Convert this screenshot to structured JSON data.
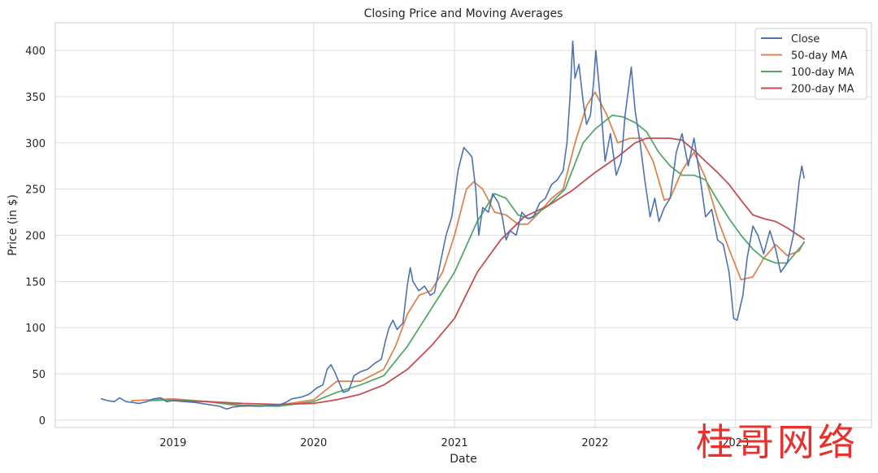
{
  "watermark": "桂哥网络",
  "chart_data": {
    "type": "line",
    "title": "Closing Price and Moving Averages",
    "xlabel": "Date",
    "ylabel": "Price (in $)",
    "xlim": [
      "2018-03-01",
      "2023-12-20"
    ],
    "ylim": [
      -8,
      430
    ],
    "x_ticks": [
      "2019",
      "2020",
      "2021",
      "2022",
      "2023"
    ],
    "x_tick_dates": [
      "2019-01-01",
      "2020-01-01",
      "2021-01-01",
      "2022-01-01",
      "2023-01-01"
    ],
    "y_ticks": [
      0,
      50,
      100,
      150,
      200,
      250,
      300,
      350,
      400
    ],
    "grid": true,
    "legend_position": "top-right",
    "series": [
      {
        "name": "Close",
        "color": "#4c72b0",
        "points": [
          [
            "2018-06-29",
            23
          ],
          [
            "2018-07-15",
            21
          ],
          [
            "2018-08-01",
            20
          ],
          [
            "2018-08-15",
            24
          ],
          [
            "2018-09-01",
            20
          ],
          [
            "2018-09-20",
            19
          ],
          [
            "2018-10-05",
            18
          ],
          [
            "2018-10-25",
            20
          ],
          [
            "2018-11-10",
            23
          ],
          [
            "2018-12-01",
            24
          ],
          [
            "2018-12-15",
            20
          ],
          [
            "2019-01-01",
            21
          ],
          [
            "2019-02-01",
            20
          ],
          [
            "2019-03-01",
            19
          ],
          [
            "2019-04-01",
            17
          ],
          [
            "2019-05-01",
            15
          ],
          [
            "2019-05-20",
            12
          ],
          [
            "2019-06-05",
            14
          ],
          [
            "2019-06-25",
            15
          ],
          [
            "2019-07-15",
            16
          ],
          [
            "2019-08-01",
            15
          ],
          [
            "2019-08-20",
            15
          ],
          [
            "2019-09-10",
            16
          ],
          [
            "2019-10-01",
            16
          ],
          [
            "2019-10-20",
            19
          ],
          [
            "2019-11-05",
            23
          ],
          [
            "2019-12-01",
            25
          ],
          [
            "2019-12-20",
            28
          ],
          [
            "2020-01-10",
            35
          ],
          [
            "2020-01-25",
            38
          ],
          [
            "2020-02-05",
            55
          ],
          [
            "2020-02-15",
            60
          ],
          [
            "2020-02-25",
            52
          ],
          [
            "2020-03-10",
            38
          ],
          [
            "2020-03-18",
            30
          ],
          [
            "2020-04-01",
            32
          ],
          [
            "2020-04-15",
            48
          ],
          [
            "2020-04-30",
            52
          ],
          [
            "2020-05-20",
            55
          ],
          [
            "2020-06-10",
            62
          ],
          [
            "2020-06-25",
            66
          ],
          [
            "2020-07-05",
            85
          ],
          [
            "2020-07-15",
            100
          ],
          [
            "2020-07-25",
            108
          ],
          [
            "2020-08-05",
            98
          ],
          [
            "2020-08-20",
            105
          ],
          [
            "2020-08-31",
            145
          ],
          [
            "2020-09-08",
            165
          ],
          [
            "2020-09-15",
            150
          ],
          [
            "2020-09-30",
            140
          ],
          [
            "2020-10-15",
            145
          ],
          [
            "2020-10-30",
            135
          ],
          [
            "2020-11-10",
            138
          ],
          [
            "2020-11-25",
            170
          ],
          [
            "2020-12-10",
            200
          ],
          [
            "2020-12-25",
            220
          ],
          [
            "2021-01-10",
            270
          ],
          [
            "2021-01-25",
            295
          ],
          [
            "2021-02-05",
            290
          ],
          [
            "2021-02-15",
            285
          ],
          [
            "2021-02-25",
            250
          ],
          [
            "2021-03-05",
            200
          ],
          [
            "2021-03-15",
            230
          ],
          [
            "2021-03-30",
            225
          ],
          [
            "2021-04-10",
            245
          ],
          [
            "2021-04-25",
            235
          ],
          [
            "2021-05-05",
            220
          ],
          [
            "2021-05-15",
            195
          ],
          [
            "2021-05-25",
            205
          ],
          [
            "2021-06-10",
            200
          ],
          [
            "2021-06-25",
            225
          ],
          [
            "2021-07-10",
            218
          ],
          [
            "2021-07-25",
            220
          ],
          [
            "2021-08-10",
            235
          ],
          [
            "2021-08-25",
            240
          ],
          [
            "2021-09-10",
            255
          ],
          [
            "2021-09-25",
            260
          ],
          [
            "2021-10-10",
            270
          ],
          [
            "2021-10-20",
            300
          ],
          [
            "2021-10-28",
            350
          ],
          [
            "2021-11-04",
            410
          ],
          [
            "2021-11-10",
            370
          ],
          [
            "2021-11-20",
            385
          ],
          [
            "2021-12-01",
            345
          ],
          [
            "2021-12-10",
            320
          ],
          [
            "2021-12-20",
            330
          ],
          [
            "2021-12-28",
            365
          ],
          [
            "2022-01-03",
            400
          ],
          [
            "2022-01-15",
            345
          ],
          [
            "2022-01-27",
            280
          ],
          [
            "2022-02-10",
            310
          ],
          [
            "2022-02-25",
            265
          ],
          [
            "2022-03-10",
            280
          ],
          [
            "2022-03-20",
            330
          ],
          [
            "2022-04-05",
            382
          ],
          [
            "2022-04-15",
            335
          ],
          [
            "2022-04-28",
            300
          ],
          [
            "2022-05-10",
            260
          ],
          [
            "2022-05-24",
            220
          ],
          [
            "2022-06-05",
            240
          ],
          [
            "2022-06-16",
            215
          ],
          [
            "2022-06-30",
            230
          ],
          [
            "2022-07-15",
            240
          ],
          [
            "2022-07-31",
            290
          ],
          [
            "2022-08-15",
            310
          ],
          [
            "2022-08-31",
            275
          ],
          [
            "2022-09-15",
            305
          ],
          [
            "2022-09-30",
            265
          ],
          [
            "2022-10-15",
            220
          ],
          [
            "2022-10-31",
            228
          ],
          [
            "2022-11-15",
            195
          ],
          [
            "2022-11-30",
            190
          ],
          [
            "2022-12-15",
            160
          ],
          [
            "2022-12-27",
            110
          ],
          [
            "2023-01-05",
            108
          ],
          [
            "2023-01-20",
            135
          ],
          [
            "2023-01-31",
            175
          ],
          [
            "2023-02-15",
            210
          ],
          [
            "2023-02-28",
            200
          ],
          [
            "2023-03-15",
            180
          ],
          [
            "2023-03-31",
            205
          ],
          [
            "2023-04-15",
            185
          ],
          [
            "2023-04-28",
            160
          ],
          [
            "2023-05-15",
            170
          ],
          [
            "2023-05-31",
            200
          ],
          [
            "2023-06-15",
            258
          ],
          [
            "2023-06-22",
            275
          ],
          [
            "2023-06-28",
            262
          ]
        ]
      },
      {
        "name": "50-day MA",
        "color": "#dd8452",
        "points": [
          [
            "2018-09-15",
            21
          ],
          [
            "2019-01-01",
            23
          ],
          [
            "2019-04-01",
            20
          ],
          [
            "2019-07-01",
            15
          ],
          [
            "2019-10-01",
            16
          ],
          [
            "2020-01-01",
            22
          ],
          [
            "2020-03-01",
            42
          ],
          [
            "2020-05-01",
            42
          ],
          [
            "2020-07-01",
            55
          ],
          [
            "2020-08-01",
            80
          ],
          [
            "2020-09-01",
            115
          ],
          [
            "2020-10-01",
            135
          ],
          [
            "2020-11-01",
            140
          ],
          [
            "2020-12-01",
            160
          ],
          [
            "2021-01-01",
            200
          ],
          [
            "2021-02-01",
            250
          ],
          [
            "2021-02-20",
            258
          ],
          [
            "2021-03-15",
            250
          ],
          [
            "2021-04-15",
            225
          ],
          [
            "2021-05-15",
            222
          ],
          [
            "2021-06-15",
            212
          ],
          [
            "2021-07-10",
            212
          ],
          [
            "2021-08-10",
            225
          ],
          [
            "2021-09-10",
            240
          ],
          [
            "2021-10-10",
            250
          ],
          [
            "2021-11-10",
            300
          ],
          [
            "2021-12-10",
            340
          ],
          [
            "2022-01-01",
            355
          ],
          [
            "2022-02-01",
            330
          ],
          [
            "2022-03-01",
            300
          ],
          [
            "2022-04-01",
            305
          ],
          [
            "2022-05-01",
            305
          ],
          [
            "2022-06-01",
            280
          ],
          [
            "2022-06-30",
            238
          ],
          [
            "2022-07-15",
            240
          ],
          [
            "2022-08-15",
            270
          ],
          [
            "2022-09-15",
            290
          ],
          [
            "2022-10-15",
            262
          ],
          [
            "2022-11-15",
            218
          ],
          [
            "2022-12-15",
            185
          ],
          [
            "2023-01-15",
            152
          ],
          [
            "2023-02-15",
            155
          ],
          [
            "2023-03-15",
            175
          ],
          [
            "2023-04-15",
            190
          ],
          [
            "2023-05-15",
            178
          ],
          [
            "2023-06-15",
            183
          ],
          [
            "2023-06-28",
            193
          ]
        ]
      },
      {
        "name": "100-day MA",
        "color": "#55a868",
        "points": [
          [
            "2018-11-01",
            21
          ],
          [
            "2019-01-01",
            22
          ],
          [
            "2019-04-01",
            20
          ],
          [
            "2019-07-01",
            16
          ],
          [
            "2019-10-01",
            15
          ],
          [
            "2020-01-01",
            20
          ],
          [
            "2020-03-01",
            30
          ],
          [
            "2020-05-01",
            38
          ],
          [
            "2020-07-01",
            48
          ],
          [
            "2020-09-01",
            80
          ],
          [
            "2020-11-01",
            120
          ],
          [
            "2021-01-01",
            160
          ],
          [
            "2021-03-01",
            215
          ],
          [
            "2021-04-15",
            245
          ],
          [
            "2021-05-15",
            240
          ],
          [
            "2021-06-15",
            222
          ],
          [
            "2021-07-15",
            218
          ],
          [
            "2021-09-01",
            232
          ],
          [
            "2021-10-15",
            250
          ],
          [
            "2021-12-01",
            300
          ],
          [
            "2022-01-01",
            315
          ],
          [
            "2022-02-15",
            330
          ],
          [
            "2022-03-15",
            328
          ],
          [
            "2022-04-15",
            322
          ],
          [
            "2022-05-15",
            312
          ],
          [
            "2022-06-15",
            290
          ],
          [
            "2022-07-15",
            275
          ],
          [
            "2022-08-15",
            265
          ],
          [
            "2022-09-15",
            265
          ],
          [
            "2022-10-15",
            260
          ],
          [
            "2022-11-15",
            238
          ],
          [
            "2022-12-15",
            218
          ],
          [
            "2023-01-15",
            200
          ],
          [
            "2023-02-15",
            185
          ],
          [
            "2023-03-15",
            175
          ],
          [
            "2023-04-15",
            170
          ],
          [
            "2023-05-15",
            170
          ],
          [
            "2023-06-28",
            192
          ]
        ]
      },
      {
        "name": "200-day MA",
        "color": "#c44e52",
        "points": [
          [
            "2019-01-01",
            21
          ],
          [
            "2019-04-01",
            20
          ],
          [
            "2019-07-01",
            18
          ],
          [
            "2019-10-01",
            17
          ],
          [
            "2020-01-01",
            18
          ],
          [
            "2020-03-01",
            22
          ],
          [
            "2020-05-01",
            28
          ],
          [
            "2020-07-01",
            38
          ],
          [
            "2020-09-01",
            55
          ],
          [
            "2020-11-01",
            80
          ],
          [
            "2021-01-01",
            110
          ],
          [
            "2021-03-01",
            160
          ],
          [
            "2021-05-01",
            195
          ],
          [
            "2021-07-01",
            220
          ],
          [
            "2021-09-01",
            232
          ],
          [
            "2021-11-01",
            248
          ],
          [
            "2022-01-01",
            268
          ],
          [
            "2022-03-01",
            285
          ],
          [
            "2022-04-15",
            300
          ],
          [
            "2022-05-15",
            305
          ],
          [
            "2022-07-15",
            305
          ],
          [
            "2022-08-15",
            303
          ],
          [
            "2022-09-15",
            292
          ],
          [
            "2022-10-15",
            280
          ],
          [
            "2022-11-15",
            268
          ],
          [
            "2022-12-15",
            255
          ],
          [
            "2023-01-15",
            238
          ],
          [
            "2023-02-15",
            222
          ],
          [
            "2023-03-15",
            218
          ],
          [
            "2023-04-15",
            215
          ],
          [
            "2023-05-15",
            208
          ],
          [
            "2023-06-28",
            196
          ]
        ]
      }
    ]
  }
}
